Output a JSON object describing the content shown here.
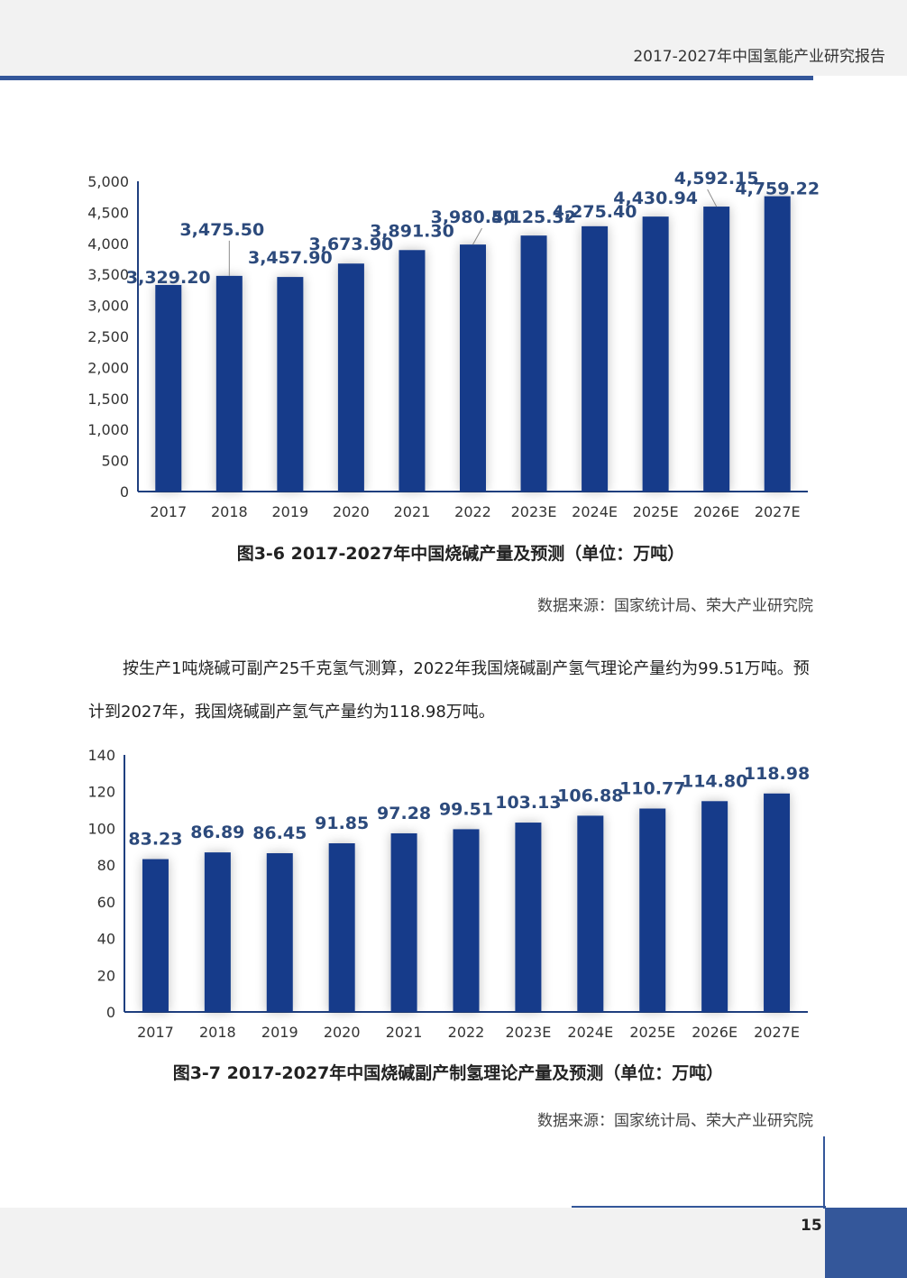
{
  "header": {
    "title": "2017-2027年中国氢能产业研究报告"
  },
  "chart_data": [
    {
      "type": "bar",
      "categories": [
        "2017",
        "2018",
        "2019",
        "2020",
        "2021",
        "2022",
        "2023E",
        "2024E",
        "2025E",
        "2026E",
        "2027E"
      ],
      "values": [
        3329.2,
        3475.5,
        3457.9,
        3673.9,
        3891.3,
        3980.5,
        4125.32,
        4275.4,
        4430.94,
        4592.15,
        4759.22
      ],
      "data_labels": [
        "3,329.20",
        "3,475.50",
        "3,457.90",
        "3,673.90",
        "3,891.30",
        "3,980.50",
        "4,125.32",
        "4,275.40",
        "4,430.94",
        "4,592.15",
        "4,759.22"
      ],
      "yticks": [
        "0",
        "500",
        "1,000",
        "1,500",
        "2,000",
        "2,500",
        "3,000",
        "3,500",
        "4,000",
        "4,500",
        "5,000"
      ],
      "ylim": [
        0,
        5000
      ],
      "title": "图3-6  2017-2027年中国烧碱产量及预测（单位：万吨）",
      "bar_color": "#153b8a",
      "label_color": "#2c4a7c"
    },
    {
      "type": "bar",
      "categories": [
        "2017",
        "2018",
        "2019",
        "2020",
        "2021",
        "2022",
        "2023E",
        "2024E",
        "2025E",
        "2026E",
        "2027E"
      ],
      "values": [
        83.23,
        86.89,
        86.45,
        91.85,
        97.28,
        99.51,
        103.13,
        106.88,
        110.77,
        114.8,
        118.98
      ],
      "data_labels": [
        "83.23",
        "86.89",
        "86.45",
        "91.85",
        "97.28",
        "99.51",
        "103.13",
        "106.88",
        "110.77",
        "114.80",
        "118.98"
      ],
      "yticks": [
        "0",
        "20",
        "40",
        "60",
        "80",
        "100",
        "120",
        "140"
      ],
      "ylim": [
        0,
        140
      ],
      "title": "图3-7  2017-2027年中国烧碱副产制氢理论产量及预测（单位：万吨）",
      "bar_color": "#153b8a",
      "label_color": "#2c4a7c"
    }
  ],
  "source1": "数据来源：国家统计局、荣大产业研究院",
  "source2": "数据来源：国家统计局、荣大产业研究院",
  "paragraph": "按生产1吨烧碱可副产25千克氢气测算，2022年我国烧碱副产氢气理论产量约为99.51万吨。预计到2027年，我国烧碱副产氢气产量约为118.98万吨。",
  "page_number": "15"
}
